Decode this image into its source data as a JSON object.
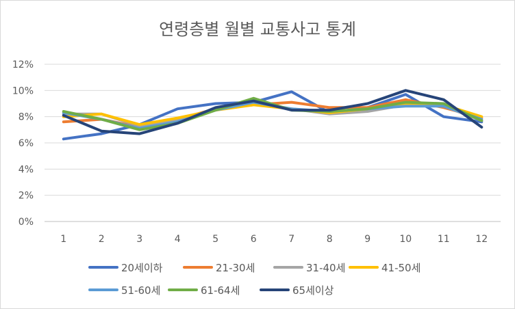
{
  "chart_data": {
    "type": "line",
    "title": "연령층별 월별 교통사고 통계",
    "xlabel": "",
    "ylabel": "",
    "categories": [
      "1",
      "2",
      "3",
      "4",
      "5",
      "6",
      "7",
      "8",
      "9",
      "10",
      "11",
      "12"
    ],
    "ylim": [
      0,
      12
    ],
    "yticks": [
      0,
      2,
      4,
      6,
      8,
      10,
      12
    ],
    "ytick_labels": [
      "0%",
      "2%",
      "4%",
      "6%",
      "8%",
      "10%",
      "12%"
    ],
    "grid": true,
    "legend_position": "bottom",
    "series": [
      {
        "name": "20세이하",
        "color": "#4472c4",
        "values": [
          6.3,
          6.7,
          7.4,
          8.6,
          9.0,
          9.1,
          9.9,
          8.3,
          8.7,
          9.7,
          8.0,
          7.6
        ]
      },
      {
        "name": "21-30세",
        "color": "#ed7d31",
        "values": [
          7.6,
          7.8,
          7.2,
          7.8,
          8.6,
          8.9,
          9.1,
          8.7,
          8.7,
          9.3,
          8.7,
          7.9
        ]
      },
      {
        "name": "31-40세",
        "color": "#a5a5a5",
        "values": [
          8.2,
          8.2,
          7.3,
          7.7,
          8.6,
          9.0,
          8.6,
          8.2,
          8.4,
          8.9,
          8.8,
          7.7
        ]
      },
      {
        "name": "41-50세",
        "color": "#ffc000",
        "values": [
          8.0,
          8.2,
          7.4,
          7.9,
          8.5,
          8.9,
          8.6,
          8.3,
          8.6,
          9.0,
          8.9,
          8.0
        ]
      },
      {
        "name": "51-60세",
        "color": "#5b9bd5",
        "values": [
          8.3,
          7.8,
          7.1,
          7.6,
          8.5,
          9.1,
          8.6,
          8.4,
          8.6,
          8.8,
          8.8,
          7.8
        ]
      },
      {
        "name": "61-64세",
        "color": "#70ad47",
        "values": [
          8.4,
          7.8,
          7.0,
          7.5,
          8.5,
          9.4,
          8.5,
          8.4,
          8.6,
          9.1,
          9.0,
          7.7
        ]
      },
      {
        "name": "65세이상",
        "color": "#264478",
        "values": [
          8.1,
          6.9,
          6.7,
          7.5,
          8.7,
          9.2,
          8.5,
          8.5,
          9.0,
          10.0,
          9.3,
          7.2
        ]
      }
    ]
  }
}
